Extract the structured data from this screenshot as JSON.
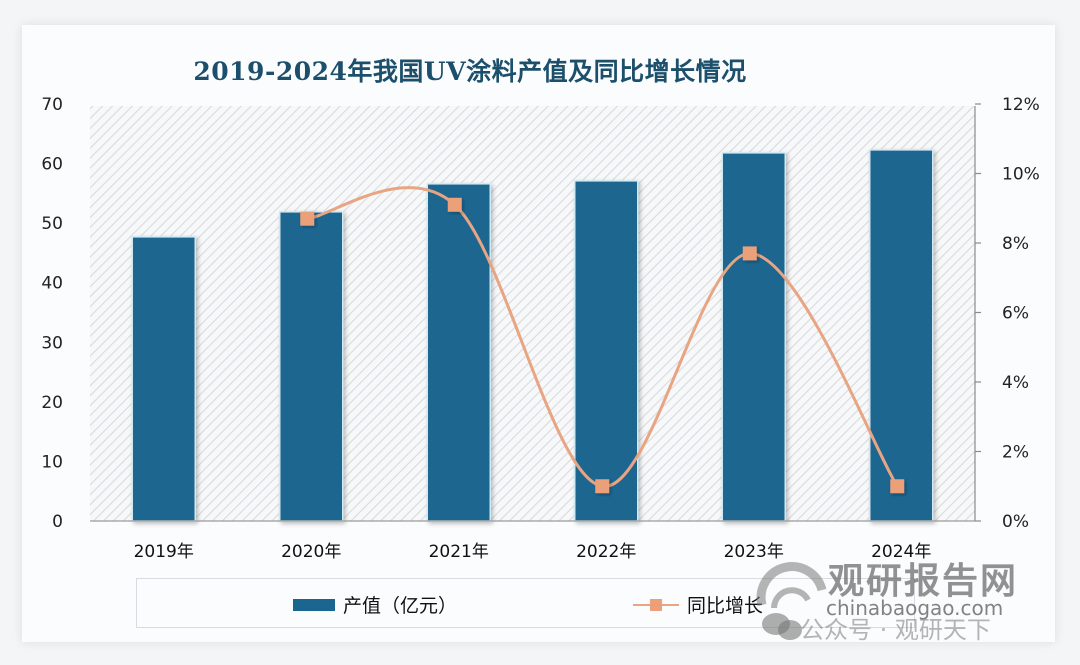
{
  "title": "2019-2024年我国UV涂料产值及同比增长情况",
  "left_axis": {
    "ticks": [
      "0",
      "10",
      "20",
      "30",
      "40",
      "50",
      "60",
      "70"
    ]
  },
  "right_axis": {
    "ticks": [
      "0%",
      "2%",
      "4%",
      "6%",
      "8%",
      "10%",
      "12%"
    ]
  },
  "legend": {
    "bar_label": "产值（亿元）",
    "line_label": "同比增长"
  },
  "watermark": {
    "brand": "观研报告网",
    "url": "chinabaogao.com",
    "publisher": "公众号 · 观研天下"
  },
  "colors": {
    "bar": "#1a6690",
    "line": "#e8a583",
    "marker": "#eba07a",
    "title": "#1c4f6b"
  },
  "chart_data": {
    "type": "bar",
    "title": "2019-2024年我国UV涂料产值及同比增长情况",
    "categories": [
      "2019年",
      "2020年",
      "2021年",
      "2022年",
      "2023年",
      "2024年"
    ],
    "series": [
      {
        "name": "产值（亿元）",
        "type": "bar",
        "axis": "left",
        "values": [
          47.7,
          51.9,
          56.6,
          57.1,
          61.8,
          62.3
        ]
      },
      {
        "name": "同比增长",
        "type": "line",
        "axis": "right",
        "unit": "%",
        "values": [
          null,
          8.7,
          9.1,
          1.0,
          7.7,
          1.0
        ]
      }
    ],
    "xlabel": "",
    "ylabel": "",
    "ylim": [
      0,
      70
    ],
    "y2lim": [
      0,
      12
    ],
    "legend_position": "bottom",
    "grid": false
  }
}
